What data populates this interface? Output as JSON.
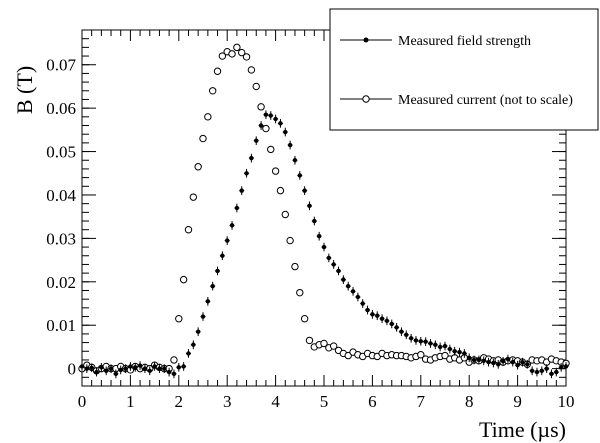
{
  "chart_data": {
    "type": "scatter",
    "title": "",
    "xlabel": "Time (µs)",
    "ylabel": "B (T)",
    "xlim": [
      0,
      10
    ],
    "ylim": [
      -0.004,
      0.078
    ],
    "xticks": [
      0,
      1,
      2,
      3,
      4,
      5,
      6,
      7,
      8,
      9,
      10
    ],
    "xtick_labels": [
      "0",
      "1",
      "2",
      "3",
      "4",
      "5",
      "6",
      "7",
      "8",
      "9",
      "10"
    ],
    "yticks": [
      0,
      0.01,
      0.02,
      0.03,
      0.04,
      0.05,
      0.06,
      0.07
    ],
    "ytick_labels": [
      "0",
      "0.01",
      "0.02",
      "0.03",
      "0.04",
      "0.05",
      "0.06",
      "0.07"
    ],
    "grid": false,
    "legend_position": "top-right",
    "series": [
      {
        "name": "Measured field strength",
        "marker": "filled-circle",
        "error_bar": 0.001,
        "x": [
          0.0,
          0.1,
          0.2,
          0.3,
          0.4,
          0.5,
          0.6,
          0.7,
          0.8,
          0.9,
          1.0,
          1.1,
          1.2,
          1.3,
          1.4,
          1.5,
          1.6,
          1.7,
          1.8,
          1.9,
          2.0,
          2.1,
          2.2,
          2.3,
          2.4,
          2.5,
          2.6,
          2.7,
          2.8,
          2.9,
          3.0,
          3.1,
          3.2,
          3.3,
          3.4,
          3.5,
          3.6,
          3.7,
          3.8,
          3.9,
          4.0,
          4.1,
          4.2,
          4.3,
          4.4,
          4.5,
          4.6,
          4.7,
          4.8,
          4.9,
          5.0,
          5.1,
          5.2,
          5.3,
          5.4,
          5.5,
          5.6,
          5.7,
          5.8,
          5.9,
          6.0,
          6.1,
          6.2,
          6.3,
          6.4,
          6.5,
          6.6,
          6.7,
          6.8,
          6.9,
          7.0,
          7.1,
          7.2,
          7.3,
          7.4,
          7.5,
          7.6,
          7.7,
          7.8,
          7.9,
          8.0,
          8.1,
          8.2,
          8.3,
          8.4,
          8.5,
          8.6,
          8.7,
          8.8,
          8.9,
          9.0,
          9.1,
          9.2,
          9.3,
          9.4,
          9.5,
          9.6,
          9.7,
          9.8,
          9.9,
          10.0
        ],
        "y": [
          0.0005,
          0.0,
          0.0002,
          -0.0008,
          0.0003,
          -0.0005,
          0.0,
          -0.0012,
          -0.0003,
          0.0,
          0.0005,
          0.0003,
          0.0007,
          0.0,
          -0.0005,
          0.0005,
          0.0,
          0.0,
          -0.0008,
          -0.0012,
          0.0003,
          0.0005,
          0.0035,
          0.0055,
          0.0085,
          0.012,
          0.0155,
          0.019,
          0.0225,
          0.026,
          0.0295,
          0.033,
          0.037,
          0.041,
          0.045,
          0.0485,
          0.0525,
          0.056,
          0.0585,
          0.0583,
          0.0575,
          0.0565,
          0.0545,
          0.0515,
          0.048,
          0.0445,
          0.041,
          0.0375,
          0.034,
          0.0305,
          0.028,
          0.0255,
          0.024,
          0.0225,
          0.0205,
          0.019,
          0.0178,
          0.0165,
          0.015,
          0.0135,
          0.0125,
          0.0122,
          0.0115,
          0.011,
          0.0103,
          0.0095,
          0.0085,
          0.0078,
          0.007,
          0.0065,
          0.0063,
          0.0062,
          0.0058,
          0.0055,
          0.005,
          0.0052,
          0.0045,
          0.004,
          0.0038,
          0.0035,
          0.0025,
          0.002,
          0.002,
          0.0018,
          0.0015,
          0.0013,
          0.001,
          0.0017,
          0.0022,
          0.0015,
          0.0008,
          0.0015,
          0.001,
          -0.0005,
          -0.0008,
          -0.0005,
          0.0,
          -0.0012,
          -0.0008,
          0.0003,
          0.0005
        ]
      },
      {
        "name": "Measured current (not to scale)",
        "marker": "open-circle",
        "x": [
          0.0,
          0.1,
          0.2,
          0.3,
          0.4,
          0.5,
          0.6,
          0.7,
          0.8,
          0.9,
          1.0,
          1.1,
          1.2,
          1.3,
          1.4,
          1.5,
          1.6,
          1.7,
          1.8,
          1.9,
          2.0,
          2.1,
          2.2,
          2.3,
          2.4,
          2.5,
          2.6,
          2.7,
          2.8,
          2.9,
          3.0,
          3.1,
          3.2,
          3.3,
          3.4,
          3.5,
          3.6,
          3.7,
          3.8,
          3.9,
          4.0,
          4.1,
          4.2,
          4.3,
          4.4,
          4.5,
          4.6,
          4.7,
          4.8,
          4.9,
          5.0,
          5.1,
          5.2,
          5.3,
          5.4,
          5.5,
          5.6,
          5.7,
          5.8,
          5.9,
          6.0,
          6.1,
          6.2,
          6.3,
          6.4,
          6.5,
          6.6,
          6.7,
          6.8,
          6.9,
          7.0,
          7.1,
          7.2,
          7.3,
          7.4,
          7.5,
          7.6,
          7.7,
          7.8,
          7.9,
          8.0,
          8.1,
          8.2,
          8.3,
          8.4,
          8.5,
          8.6,
          8.7,
          8.8,
          8.9,
          9.0,
          9.1,
          9.2,
          9.3,
          9.4,
          9.5,
          9.6,
          9.7,
          9.8,
          9.9,
          10.0
        ],
        "y": [
          0.0,
          0.0008,
          0.0003,
          -0.0005,
          0.0,
          0.0005,
          0.0,
          0.0,
          0.0005,
          0.0,
          -0.0003,
          0.0005,
          0.0,
          0.0003,
          0.0,
          0.0008,
          0.0003,
          0.0,
          0.0,
          0.002,
          0.0115,
          0.0205,
          0.032,
          0.0395,
          0.0465,
          0.053,
          0.058,
          0.064,
          0.0685,
          0.072,
          0.073,
          0.0725,
          0.074,
          0.0728,
          0.0718,
          0.0688,
          0.065,
          0.0603,
          0.0553,
          0.0505,
          0.0455,
          0.041,
          0.0355,
          0.0295,
          0.0235,
          0.0175,
          0.0115,
          0.0065,
          0.005,
          0.0055,
          0.0058,
          0.0048,
          0.0052,
          0.0042,
          0.0035,
          0.003,
          0.0038,
          0.0032,
          0.0028,
          0.0035,
          0.003,
          0.0028,
          0.0035,
          0.003,
          0.0032,
          0.003,
          0.003,
          0.0028,
          0.0025,
          0.0028,
          0.0032,
          0.0022,
          0.002,
          0.0025,
          0.0028,
          0.003,
          0.0022,
          0.0025,
          0.002,
          0.0025,
          0.0015,
          0.002,
          0.0018,
          0.0025,
          0.0022,
          0.0018,
          0.002,
          0.0015,
          0.0018,
          0.002,
          0.0018,
          0.0015,
          0.001,
          0.002,
          0.0018,
          0.002,
          0.0015,
          0.0022,
          0.0018,
          0.0015,
          0.0012
        ]
      }
    ]
  }
}
